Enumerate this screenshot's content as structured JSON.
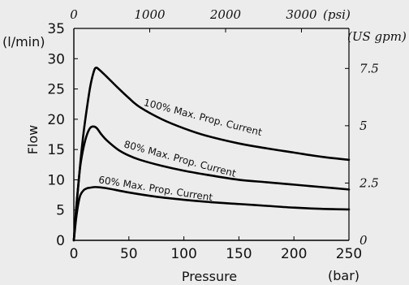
{
  "chart_data": {
    "type": "line",
    "xlabel": "Pressure",
    "ylabel": "Flow",
    "x_unit": "(bar)",
    "y_unit": "(l/min)",
    "xlim": [
      0,
      250
    ],
    "ylim": [
      0,
      35
    ],
    "x_ticks": [
      "0",
      "50",
      "100",
      "150",
      "200",
      "250"
    ],
    "y_ticks": [
      "0",
      "5",
      "10",
      "15",
      "20",
      "25",
      "30",
      "35"
    ],
    "top_axis": {
      "unit": "(psi)",
      "ticks": [
        {
          "label": "0",
          "psi": 0
        },
        {
          "label": "1000",
          "psi": 1000
        },
        {
          "label": "2000",
          "psi": 2000
        },
        {
          "label": "3000",
          "psi": 3000
        }
      ]
    },
    "right_axis": {
      "unit": "(US gpm)",
      "ticks": [
        {
          "label": "0",
          "gpm": 0
        },
        {
          "label": "2.5",
          "gpm": 2.5
        },
        {
          "label": "5",
          "gpm": 5
        },
        {
          "label": "7.5",
          "gpm": 7.5
        }
      ]
    },
    "grid": false,
    "series": [
      {
        "name": "100% Max. Prop. Current",
        "points": [
          [
            0,
            0
          ],
          [
            3,
            7
          ],
          [
            6,
            13
          ],
          [
            9,
            18
          ],
          [
            12,
            22
          ],
          [
            15,
            25.5
          ],
          [
            18,
            27.8
          ],
          [
            20,
            28.5
          ],
          [
            23,
            28.2
          ],
          [
            30,
            27
          ],
          [
            40,
            25.2
          ],
          [
            50,
            23.5
          ],
          [
            60,
            22
          ],
          [
            80,
            20
          ],
          [
            100,
            18.5
          ],
          [
            120,
            17.3
          ],
          [
            150,
            16
          ],
          [
            175,
            15.2
          ],
          [
            200,
            14.5
          ],
          [
            225,
            13.8
          ],
          [
            250,
            13.3
          ]
        ],
        "label_x": 63,
        "label_y": 22.3,
        "label_angle": 14.5
      },
      {
        "name": "80% Max. Prop. Current",
        "points": [
          [
            0,
            0
          ],
          [
            2,
            5
          ],
          [
            4,
            9
          ],
          [
            6,
            12.5
          ],
          [
            9,
            15.5
          ],
          [
            12,
            17.5
          ],
          [
            15,
            18.6
          ],
          [
            18,
            18.8
          ],
          [
            21,
            18.5
          ],
          [
            25,
            17.5
          ],
          [
            30,
            16.5
          ],
          [
            40,
            15
          ],
          [
            50,
            14
          ],
          [
            60,
            13.3
          ],
          [
            80,
            12.3
          ],
          [
            100,
            11.5
          ],
          [
            125,
            10.7
          ],
          [
            150,
            10
          ],
          [
            175,
            9.6
          ],
          [
            200,
            9.2
          ],
          [
            225,
            8.8
          ],
          [
            250,
            8.4
          ]
        ],
        "label_x": 45,
        "label_y": 15.4,
        "label_angle": 15
      },
      {
        "name": "60% Max. Prop. Current",
        "points": [
          [
            0,
            0
          ],
          [
            2,
            3.5
          ],
          [
            4,
            6
          ],
          [
            6,
            7.5
          ],
          [
            9,
            8.3
          ],
          [
            12,
            8.6
          ],
          [
            15,
            8.7
          ],
          [
            20,
            8.8
          ],
          [
            30,
            8.6
          ],
          [
            50,
            7.9
          ],
          [
            75,
            7.2
          ],
          [
            100,
            6.7
          ],
          [
            125,
            6.3
          ],
          [
            150,
            6
          ],
          [
            175,
            5.7
          ],
          [
            200,
            5.4
          ],
          [
            225,
            5.2
          ],
          [
            250,
            5.1
          ]
        ],
        "label_x": 22,
        "label_y": 9.5,
        "label_angle": 9
      }
    ]
  }
}
